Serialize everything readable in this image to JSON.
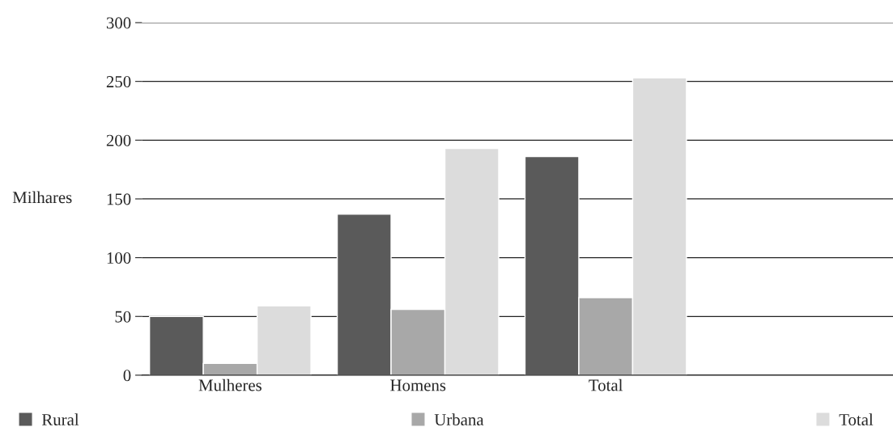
{
  "chart_data": {
    "type": "bar",
    "ylabel": "Milhares",
    "categories": [
      "Mulheres",
      "Homens",
      "Total"
    ],
    "series": [
      {
        "name": "Rural",
        "color": "#5a5a5a",
        "values": [
          50,
          137,
          186
        ]
      },
      {
        "name": "Urbana",
        "color": "#a8a8a8",
        "values": [
          10,
          56,
          66
        ]
      },
      {
        "name": "Total",
        "color": "#dcdcdc",
        "values": [
          59,
          193,
          253
        ]
      }
    ],
    "ylim": [
      0,
      300
    ],
    "yticks": [
      0,
      50,
      100,
      150,
      200,
      250,
      300
    ],
    "grid": "y",
    "legend": "bottom"
  }
}
